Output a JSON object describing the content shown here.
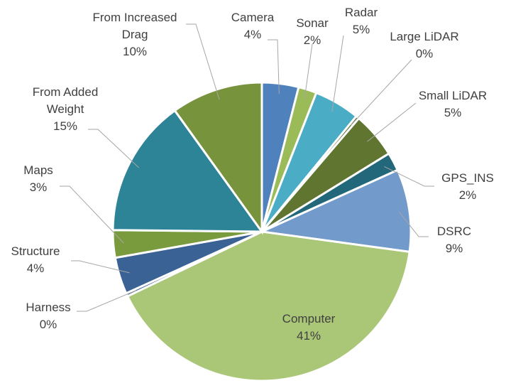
{
  "chart_data": {
    "type": "pie",
    "title": "",
    "slices": [
      {
        "name": "Camera",
        "value": 4,
        "label": "4%",
        "color": "#4f81bd"
      },
      {
        "name": "Sonar",
        "value": 2,
        "label": "2%",
        "color": "#9bbb59"
      },
      {
        "name": "Radar",
        "value": 5,
        "label": "5%",
        "color": "#4bacc6"
      },
      {
        "name": "Large LiDAR",
        "value": 0,
        "label": "0%",
        "color": "#4f6228"
      },
      {
        "name": "Small LiDAR",
        "value": 5,
        "label": "5%",
        "color": "#5f7530"
      },
      {
        "name": "GPS_INS",
        "value": 2,
        "label": "2%",
        "color": "#23687a"
      },
      {
        "name": "DSRC",
        "value": 9,
        "label": "9%",
        "color": "#729aca"
      },
      {
        "name": "Computer",
        "value": 41,
        "label": "41%",
        "color": "#aac677"
      },
      {
        "name": "Harness",
        "value": 0,
        "label": "0%",
        "color": "#3a6294"
      },
      {
        "name": "Structure",
        "value": 4,
        "label": "4%",
        "color": "#3a6294"
      },
      {
        "name": "Maps",
        "value": 3,
        "label": "3%",
        "color": "#7a9a3e"
      },
      {
        "name": "From Added Weight",
        "value": 15,
        "label": "15%",
        "color": "#2e8497"
      },
      {
        "name": "From Increased Drag",
        "value": 10,
        "label": "10%",
        "color": "#77933c"
      }
    ]
  }
}
